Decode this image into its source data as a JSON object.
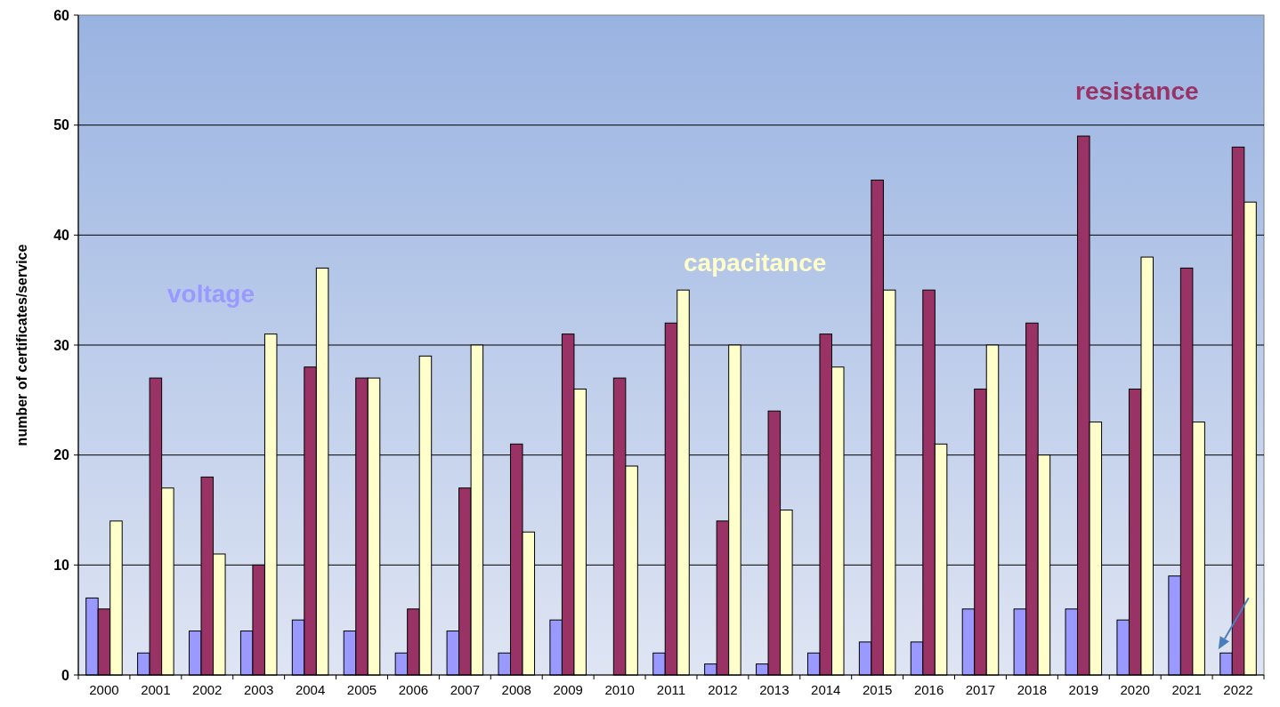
{
  "chart_data": {
    "type": "bar",
    "ylabel": "number of certificates/service",
    "categories": [
      "2000",
      "2001",
      "2002",
      "2003",
      "2004",
      "2005",
      "2006",
      "2007",
      "2008",
      "2009",
      "2010",
      "2011",
      "2012",
      "2013",
      "2014",
      "2015",
      "2016",
      "2017",
      "2018",
      "2019",
      "2020",
      "2021",
      "2022"
    ],
    "series": [
      {
        "name": "voltage",
        "color": "#9999ff",
        "values": [
          7,
          2,
          4,
          4,
          5,
          4,
          2,
          4,
          2,
          5,
          null,
          2,
          1,
          1,
          2,
          3,
          3,
          6,
          6,
          6,
          5,
          9,
          2
        ]
      },
      {
        "name": "resistance",
        "color": "#993366",
        "values": [
          6,
          27,
          18,
          10,
          28,
          27,
          6,
          17,
          21,
          31,
          27,
          32,
          14,
          24,
          31,
          45,
          35,
          26,
          32,
          49,
          26,
          37,
          48
        ]
      },
      {
        "name": "capacitance",
        "color": "#ffffcc",
        "values": [
          14,
          17,
          11,
          31,
          37,
          27,
          29,
          30,
          13,
          26,
          19,
          35,
          30,
          15,
          28,
          35,
          21,
          30,
          20,
          23,
          38,
          23,
          43
        ]
      }
    ],
    "ylim": [
      0,
      60
    ],
    "yticks": [
      0,
      10,
      20,
      30,
      40,
      50,
      60
    ],
    "grid": "y"
  }
}
